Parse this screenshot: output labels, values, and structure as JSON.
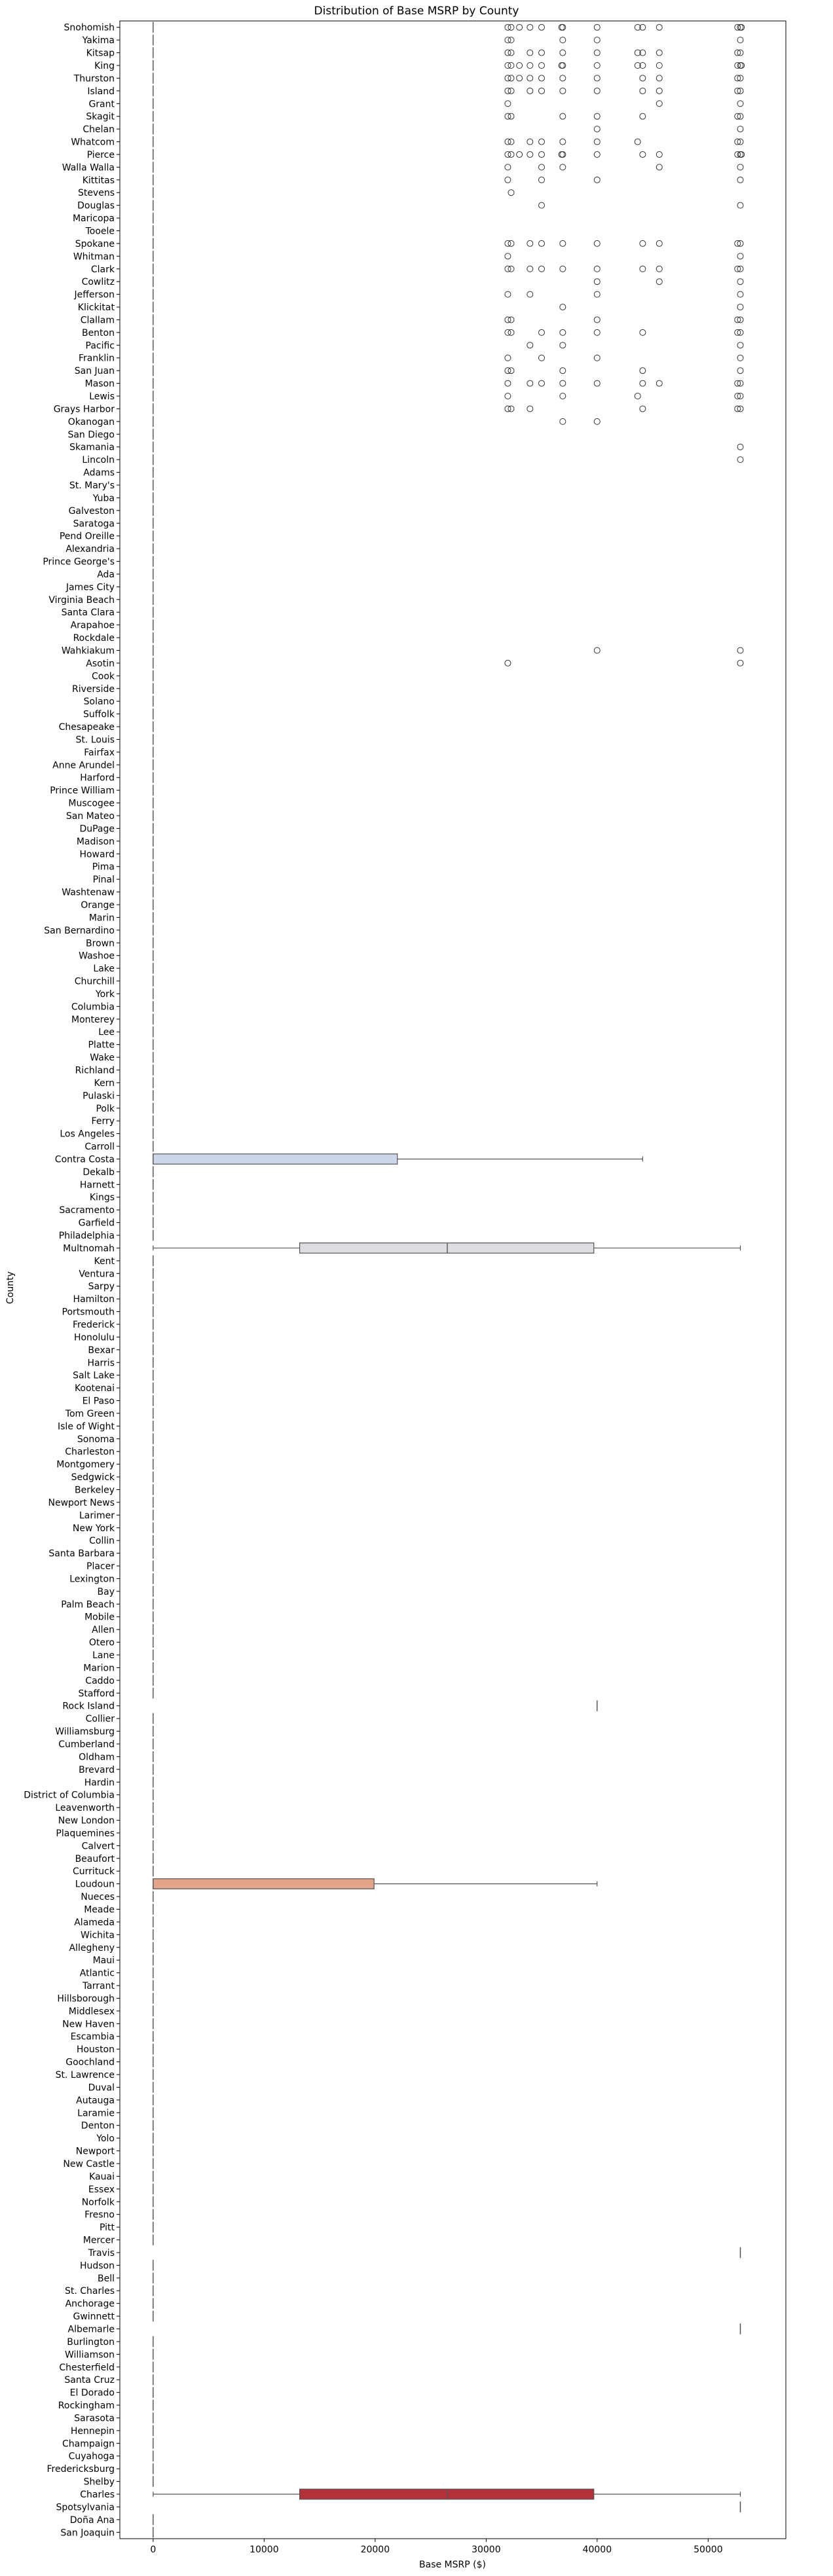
{
  "chart_data": {
    "type": "box",
    "orientation": "horizontal",
    "title": "Distribution of Base MSRP by County",
    "xlabel": "Base MSRP ($)",
    "ylabel": "County",
    "xlim": [
      -3000,
      57000
    ],
    "xticks": [
      0,
      10000,
      20000,
      30000,
      40000,
      50000
    ],
    "xtick_labels": [
      "0",
      "10000",
      "20000",
      "30000",
      "40000",
      "50000"
    ],
    "categories": [
      "Snohomish",
      "Yakima",
      "Kitsap",
      "King",
      "Thurston",
      "Island",
      "Grant",
      "Skagit",
      "Chelan",
      "Whatcom",
      "Pierce",
      "Walla Walla",
      "Kittitas",
      "Stevens",
      "Douglas",
      "Maricopa",
      "Tooele",
      "Spokane",
      "Whitman",
      "Clark",
      "Cowlitz",
      "Jefferson",
      "Klickitat",
      "Clallam",
      "Benton",
      "Pacific",
      "Franklin",
      "San Juan",
      "Mason",
      "Lewis",
      "Grays Harbor",
      "Okanogan",
      "San Diego",
      "Skamania",
      "Lincoln",
      "Adams",
      "St. Mary's",
      "Yuba",
      "Galveston",
      "Saratoga",
      "Pend Oreille",
      "Alexandria",
      "Prince George's",
      "Ada",
      "James City",
      "Virginia Beach",
      "Santa Clara",
      "Arapahoe",
      "Rockdale",
      "Wahkiakum",
      "Asotin",
      "Cook",
      "Riverside",
      "Solano",
      "Suffolk",
      "Chesapeake",
      "St. Louis",
      "Fairfax",
      "Anne Arundel",
      "Harford",
      "Prince William",
      "Muscogee",
      "San Mateo",
      "DuPage",
      "Madison",
      "Howard",
      "Pima",
      "Pinal",
      "Washtenaw",
      "Orange",
      "Marin",
      "San Bernardino",
      "Brown",
      "Washoe",
      "Lake",
      "Churchill",
      "York",
      "Columbia",
      "Monterey",
      "Lee",
      "Platte",
      "Wake",
      "Richland",
      "Kern",
      "Pulaski",
      "Polk",
      "Ferry",
      "Los Angeles",
      "Carroll",
      "Contra Costa",
      "Dekalb",
      "Harnett",
      "Kings",
      "Sacramento",
      "Garfield",
      "Philadelphia",
      "Multnomah",
      "Kent",
      "Ventura",
      "Sarpy",
      "Hamilton",
      "Portsmouth",
      "Frederick",
      "Honolulu",
      "Bexar",
      "Harris",
      "Salt Lake",
      "Kootenai",
      "El Paso",
      "Tom Green",
      "Isle of Wight",
      "Sonoma",
      "Charleston",
      "Montgomery",
      "Sedgwick",
      "Berkeley",
      "Newport News",
      "Larimer",
      "New York",
      "Collin",
      "Santa Barbara",
      "Placer",
      "Lexington",
      "Bay",
      "Palm Beach",
      "Mobile",
      "Allen",
      "Otero",
      "Lane",
      "Marion",
      "Caddo",
      "Stafford",
      "Rock Island",
      "Collier",
      "Williamsburg",
      "Cumberland",
      "Oldham",
      "Brevard",
      "Hardin",
      "District of Columbia",
      "Leavenworth",
      "New London",
      "Plaquemines",
      "Calvert",
      "Beaufort",
      "Currituck",
      "Loudoun",
      "Nueces",
      "Meade",
      "Alameda",
      "Wichita",
      "Allegheny",
      "Maui",
      "Atlantic",
      "Tarrant",
      "Hillsborough",
      "Middlesex",
      "New Haven",
      "Escambia",
      "Houston",
      "Goochland",
      "St. Lawrence",
      "Duval",
      "Autauga",
      "Laramie",
      "Denton",
      "Yolo",
      "Newport",
      "New Castle",
      "Kauai",
      "Essex",
      "Norfolk",
      "Fresno",
      "Pitt",
      "Mercer",
      "Travis",
      "Hudson",
      "Bell",
      "St. Charles",
      "Anchorage",
      "Gwinnett",
      "Albemarle",
      "Burlington",
      "Williamson",
      "Chesterfield",
      "Santa Cruz",
      "El Dorado",
      "Rockingham",
      "Sarasota",
      "Hennepin",
      "Champaign",
      "Cuyahoga",
      "Fredericksburg",
      "Shelby",
      "Charles",
      "Spotsylvania",
      "Doña Ana",
      "San Joaquin"
    ],
    "boxes": [
      {
        "county": "Rock Island",
        "q1": 39995,
        "median": 39995,
        "q3": 39995,
        "whislo": 39995,
        "whishi": 39995,
        "color": "#f5f5f5"
      },
      {
        "county": "Travis",
        "q1": 52900,
        "median": 52900,
        "q3": 52900,
        "whislo": 52900,
        "whishi": 52900,
        "color": "#f5f5f5"
      },
      {
        "county": "Albemarle",
        "q1": 52900,
        "median": 52900,
        "q3": 52900,
        "whislo": 52900,
        "whishi": 52900,
        "color": "#f5f5f5"
      },
      {
        "county": "Spotsylvania",
        "q1": 52900,
        "median": 52900,
        "q3": 52900,
        "whislo": 52900,
        "whishi": 52900,
        "color": "#f5f5f5"
      },
      {
        "county": "Contra Costa",
        "q1": 0,
        "median": 0,
        "q3": 22000,
        "whislo": 0,
        "whishi": 44100,
        "color": "#cdd7ea"
      },
      {
        "county": "Multnomah",
        "q1": 13200,
        "median": 26500,
        "q3": 39700,
        "whislo": 0,
        "whishi": 52900,
        "color": "#dcdde0"
      },
      {
        "county": "Loudoun",
        "q1": 0,
        "median": 0,
        "q3": 19900,
        "whislo": 0,
        "whishi": 39995,
        "color": "#e3a48a"
      },
      {
        "county": "Charles",
        "q1": 13200,
        "median": 26500,
        "q3": 39700,
        "whislo": 0,
        "whishi": 52900,
        "color": "#b3313b"
      }
    ],
    "zero_median_counties_note": "All remaining counties show a collapsed box at 0",
    "outliers": [
      {
        "county": "Snohomish",
        "values": [
          31950,
          32250,
          32995,
          33950,
          34995,
          36900,
          36800,
          39995,
          43650,
          44100,
          45600,
          52650,
          52900,
          53000
        ]
      },
      {
        "county": "Yakima",
        "values": [
          31950,
          32250,
          36900,
          39995,
          52900
        ]
      },
      {
        "county": "Kitsap",
        "values": [
          31950,
          32250,
          33950,
          34995,
          36900,
          39995,
          43650,
          44100,
          45600,
          52650,
          52900
        ]
      },
      {
        "county": "King",
        "values": [
          31950,
          32250,
          32995,
          33950,
          34995,
          36800,
          36900,
          39995,
          43650,
          44100,
          45600,
          52650,
          52900,
          53000
        ]
      },
      {
        "county": "Thurston",
        "values": [
          31950,
          32250,
          32995,
          33950,
          34995,
          36900,
          39995,
          44100,
          45600,
          52650,
          52900
        ]
      },
      {
        "county": "Island",
        "values": [
          31950,
          32250,
          33950,
          34995,
          36900,
          39995,
          44100,
          45600,
          52650,
          52900
        ]
      },
      {
        "county": "Grant",
        "values": [
          31950,
          45600,
          52900
        ]
      },
      {
        "county": "Skagit",
        "values": [
          31950,
          32250,
          36900,
          39995,
          44100,
          52650,
          52900
        ]
      },
      {
        "county": "Chelan",
        "values": [
          39995,
          52900
        ]
      },
      {
        "county": "Whatcom",
        "values": [
          31950,
          32250,
          33950,
          34995,
          36900,
          39995,
          43650,
          52650,
          52900
        ]
      },
      {
        "county": "Pierce",
        "values": [
          31950,
          32250,
          32995,
          33950,
          34995,
          36800,
          36900,
          39995,
          44100,
          45600,
          52650,
          52900,
          53000
        ]
      },
      {
        "county": "Walla Walla",
        "values": [
          31950,
          34995,
          36900,
          45600,
          52900
        ]
      },
      {
        "county": "Kittitas",
        "values": [
          31950,
          34995,
          39995,
          52900
        ]
      },
      {
        "county": "Stevens",
        "values": [
          32250
        ]
      },
      {
        "county": "Douglas",
        "values": [
          34995,
          52900
        ]
      },
      {
        "county": "Spokane",
        "values": [
          31950,
          32250,
          33950,
          34995,
          36900,
          39995,
          44100,
          45600,
          52650,
          52900
        ]
      },
      {
        "county": "Whitman",
        "values": [
          31950,
          52900
        ]
      },
      {
        "county": "Clark",
        "values": [
          31950,
          32250,
          33950,
          34995,
          36900,
          39995,
          44100,
          45600,
          52650,
          52900
        ]
      },
      {
        "county": "Cowlitz",
        "values": [
          39995,
          45600,
          52900
        ]
      },
      {
        "county": "Jefferson",
        "values": [
          31950,
          33950,
          39995,
          52900
        ]
      },
      {
        "county": "Klickitat",
        "values": [
          36900,
          52900
        ]
      },
      {
        "county": "Clallam",
        "values": [
          31950,
          32250,
          39995,
          52650,
          52900
        ]
      },
      {
        "county": "Benton",
        "values": [
          31950,
          32250,
          34995,
          36900,
          39995,
          44100,
          52650,
          52900
        ]
      },
      {
        "county": "Pacific",
        "values": [
          33950,
          36900,
          52900
        ]
      },
      {
        "county": "Franklin",
        "values": [
          31950,
          34995,
          39995,
          52900
        ]
      },
      {
        "county": "San Juan",
        "values": [
          31950,
          32250,
          36900,
          44100,
          52900
        ]
      },
      {
        "county": "Mason",
        "values": [
          31950,
          33950,
          34995,
          36900,
          39995,
          44100,
          45600,
          52650,
          52900
        ]
      },
      {
        "county": "Lewis",
        "values": [
          31950,
          36900,
          43650,
          52650,
          52900
        ]
      },
      {
        "county": "Grays Harbor",
        "values": [
          31950,
          32250,
          33950,
          44100,
          52650,
          52900
        ]
      },
      {
        "county": "Okanogan",
        "values": [
          36900,
          39995
        ]
      },
      {
        "county": "Skamania",
        "values": [
          52900
        ]
      },
      {
        "county": "Lincoln",
        "values": [
          52900
        ]
      },
      {
        "county": "Wahkiakum",
        "values": [
          39995,
          52900
        ]
      },
      {
        "county": "Asotin",
        "values": [
          31950,
          52900
        ]
      }
    ]
  }
}
